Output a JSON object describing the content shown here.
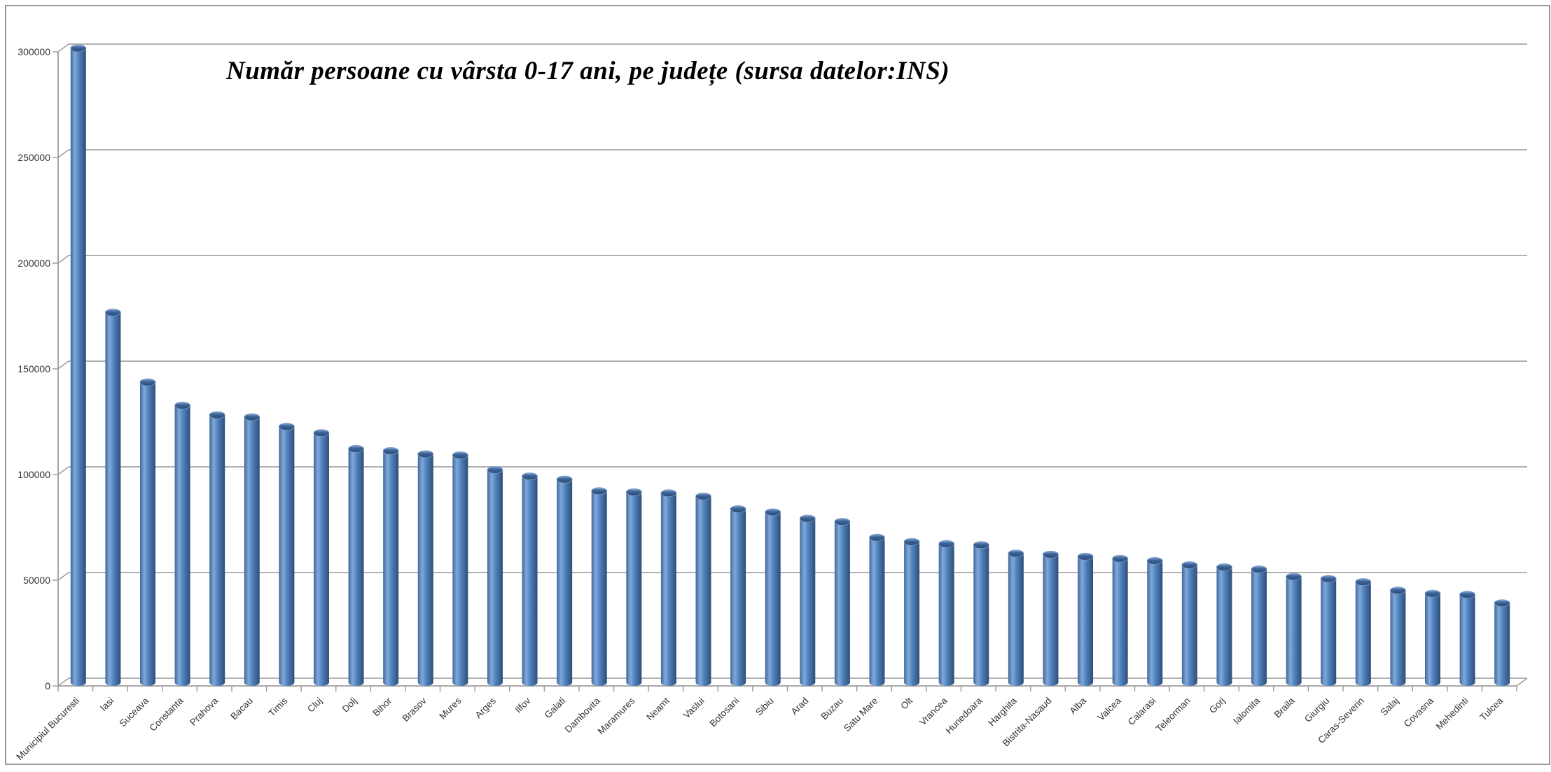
{
  "window": {
    "background": "#ffffff",
    "frame_color": "#9a9a9a"
  },
  "chart_data": {
    "type": "bar",
    "style": "3d-cylinder",
    "title": "Număr persoane cu vârsta 0-17 ani, pe județe (sursa datelor:INS)",
    "xlabel": "",
    "ylabel": "",
    "legend": "none",
    "grid": true,
    "ylim": [
      0,
      300000
    ],
    "ytick_interval": 50000,
    "ytick_labels": [
      "0",
      "50000",
      "100000",
      "150000",
      "200000",
      "250000",
      "300000"
    ],
    "categories": [
      "Municipiul Bucuresti",
      "Iasi",
      "Suceava",
      "Constanta",
      "Prahova",
      "Bacau",
      "Timis",
      "Cluj",
      "Dolj",
      "Bihor",
      "Brasov",
      "Mures",
      "Arges",
      "Ilfov",
      "Galati",
      "Dambovita",
      "Maramures",
      "Neamt",
      "Vaslui",
      "Botosani",
      "Sibiu",
      "Arad",
      "Buzau",
      "Satu Mare",
      "Olt",
      "Vrancea",
      "Hunedoara",
      "Harghita",
      "Bistrita-Nasaud",
      "Alba",
      "Valcea",
      "Calarasi",
      "Teleorman",
      "Gorj",
      "Ialomita",
      "Braila",
      "Giurgiu",
      "Caras-Severin",
      "Salaj",
      "Covasna",
      "Mehedinti",
      "Tulcea"
    ],
    "values": [
      300000,
      175000,
      142000,
      131000,
      126500,
      125500,
      121000,
      118000,
      110500,
      109500,
      108000,
      107500,
      100500,
      97500,
      96000,
      90500,
      90000,
      89500,
      88000,
      82000,
      80500,
      77500,
      76000,
      68500,
      66500,
      65500,
      65000,
      61000,
      60500,
      59500,
      58500,
      57500,
      55500,
      54500,
      53500,
      50000,
      49000,
      47500,
      43500,
      42000,
      41500,
      37500
    ],
    "colors": {
      "bar_fill": "#4f81bd",
      "bar_highlight": "#80a9da",
      "bar_edge_dark": "#2e4e77",
      "bar_top": "#3c6398",
      "gridline": "#a6a6a6",
      "axis_line": "#9d9d9d",
      "tick_text": "#333333",
      "title_text": "#000000"
    }
  }
}
